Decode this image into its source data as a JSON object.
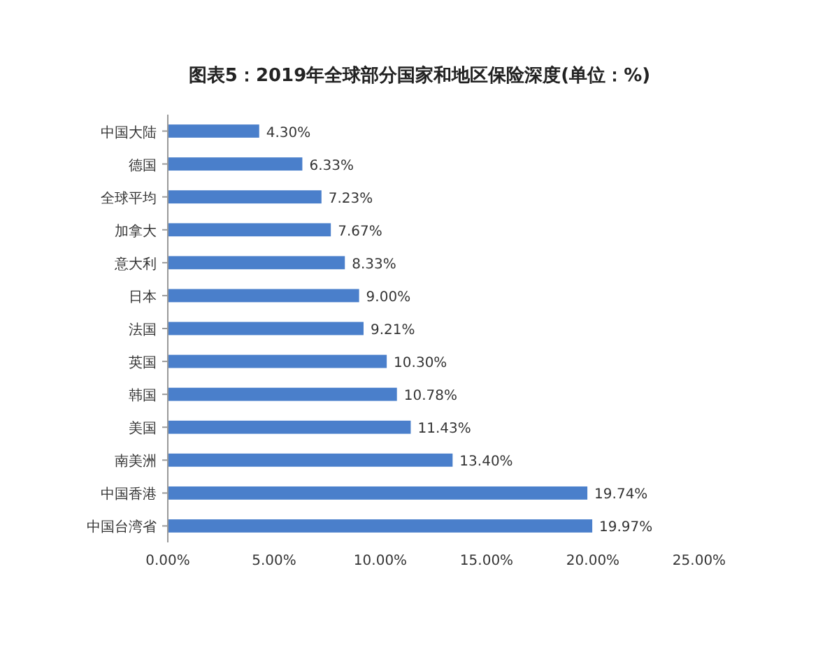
{
  "chart_data": {
    "type": "bar",
    "orientation": "horizontal",
    "title": "图表5：2019年全球部分国家和地区保险深度(单位：%)",
    "categories": [
      "中国大陆",
      "德国",
      "全球平均",
      "加拿大",
      "意大利",
      "日本",
      "法国",
      "英国",
      "韩国",
      "美国",
      "南美洲",
      "中国香港",
      "中国台湾省"
    ],
    "values": [
      4.3,
      6.33,
      7.23,
      7.67,
      8.33,
      9.0,
      9.21,
      10.3,
      10.78,
      11.43,
      13.4,
      19.74,
      19.97
    ],
    "value_labels": [
      "4.30%",
      "6.33%",
      "7.23%",
      "7.67%",
      "8.33%",
      "9.00%",
      "9.21%",
      "10.30%",
      "10.78%",
      "11.43%",
      "13.40%",
      "19.74%",
      "19.97%"
    ],
    "color": "#4a7fcb",
    "xlim": [
      0,
      25
    ],
    "xticks": [
      {
        "value": 0,
        "label": "0.00%"
      },
      {
        "value": 5,
        "label": "5.00%"
      },
      {
        "value": 10,
        "label": "10.00%"
      },
      {
        "value": 15,
        "label": "15.00%"
      },
      {
        "value": 20,
        "label": "20.00%"
      },
      {
        "value": 25,
        "label": "25.00%"
      }
    ]
  }
}
